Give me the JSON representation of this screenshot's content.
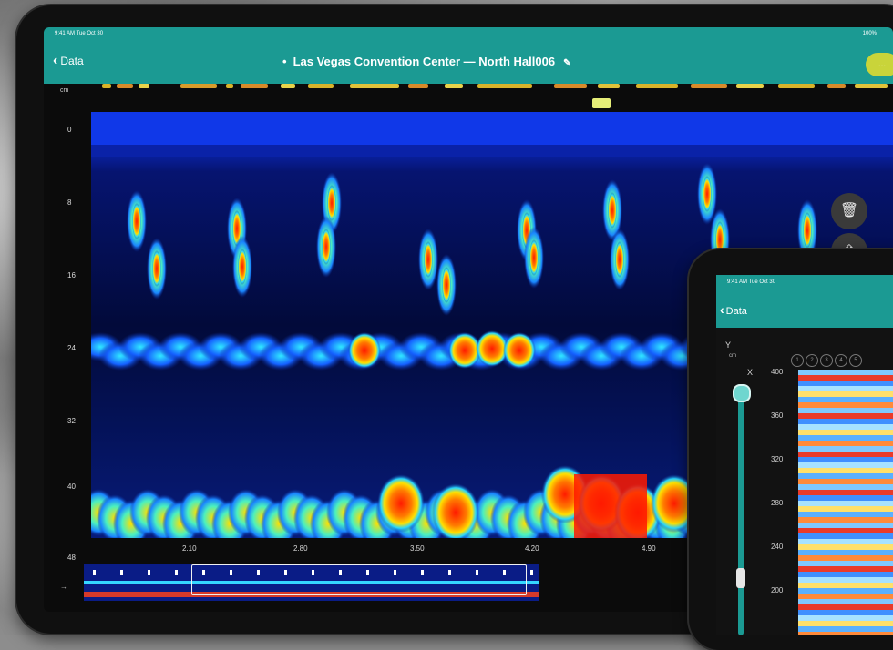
{
  "main": {
    "status": {
      "time": "9:41 AM  Tue Oct 30",
      "battery": "100%"
    },
    "nav": {
      "back_label": "Data",
      "title": "Las Vegas Convention Center — North Hall006",
      "action_label": "..."
    },
    "unit": "cm",
    "y_ticks": [
      "0",
      "8",
      "16",
      "24",
      "32",
      "40",
      "48"
    ],
    "x_ticks": [
      "2.10",
      "2.80",
      "3.50",
      "4.20",
      "4.90"
    ],
    "side_buttons": [
      {
        "icon": "trash-icon",
        "glyph": "🗑"
      },
      {
        "icon": "share-icon",
        "glyph": "⇧"
      }
    ],
    "overview_arrow": "→"
  },
  "second": {
    "status": "9:41 AM  Tue Oct 30",
    "back_label": "Data",
    "axis_y": "Y",
    "axis_x": "X",
    "unit": "cm",
    "circles": [
      "1",
      "2",
      "3",
      "4",
      "5"
    ],
    "y_ticks": [
      "400",
      "360",
      "320",
      "280",
      "240",
      "200"
    ]
  },
  "colors": {
    "accent": "#1b9a93",
    "action": "#c9d43a",
    "background_scan": "#05103a"
  }
}
